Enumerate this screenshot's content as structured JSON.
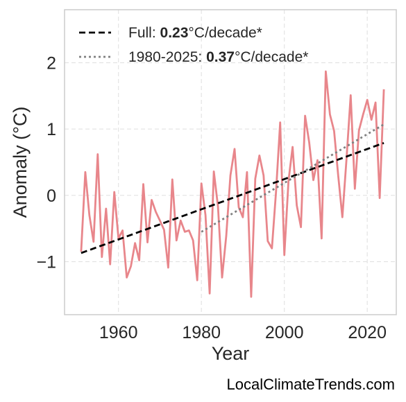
{
  "chart_data": {
    "type": "line",
    "xlabel": "Year",
    "ylabel": "Anomaly (°C)",
    "xlim": [
      1947,
      2027
    ],
    "ylim": [
      -1.8,
      2.8
    ],
    "xticks": [
      1960,
      1980,
      2000,
      2020
    ],
    "yticks": [
      -1,
      0,
      1,
      2
    ],
    "ytick_labels": [
      "−1",
      "0",
      "1",
      "2"
    ],
    "grid": true,
    "legend_position": "top-left",
    "series": [
      {
        "kind": "anomaly",
        "color": "#e8868b",
        "x": [
          1951,
          1952,
          1953,
          1954,
          1955,
          1956,
          1957,
          1958,
          1959,
          1960,
          1961,
          1962,
          1963,
          1964,
          1965,
          1966,
          1967,
          1968,
          1969,
          1970,
          1971,
          1972,
          1973,
          1974,
          1975,
          1976,
          1977,
          1978,
          1979,
          1980,
          1981,
          1982,
          1983,
          1984,
          1985,
          1986,
          1987,
          1988,
          1989,
          1990,
          1991,
          1992,
          1993,
          1994,
          1995,
          1996,
          1997,
          1998,
          1999,
          2000,
          2001,
          2002,
          2003,
          2004,
          2005,
          2006,
          2007,
          2008,
          2009,
          2010,
          2011,
          2012,
          2013,
          2014,
          2015,
          2016,
          2017,
          2018,
          2019,
          2020,
          2021,
          2022,
          2023,
          2024
        ],
        "y": [
          -0.85,
          0.35,
          -0.3,
          -0.7,
          0.62,
          -0.93,
          -0.2,
          -1.04,
          0.05,
          -0.65,
          -0.53,
          -1.24,
          -1.07,
          -0.72,
          -0.98,
          0.17,
          -0.71,
          -0.07,
          -0.25,
          -0.38,
          -0.52,
          -1.09,
          0.24,
          -0.68,
          -0.38,
          -0.55,
          -0.53,
          -0.68,
          -1.28,
          0.18,
          -0.3,
          -1.48,
          0.36,
          -0.17,
          -1.24,
          -0.61,
          0.3,
          0.7,
          -0.18,
          -0.33,
          0.35,
          -1.53,
          0.25,
          0.6,
          0.3,
          -0.69,
          -0.8,
          0.05,
          1.1,
          -0.9,
          0.22,
          0.73,
          -0.15,
          -0.48,
          1.2,
          0.8,
          0.23,
          0.53,
          -0.65,
          1.87,
          1.22,
          0.97,
          0.3,
          -0.33,
          0.55,
          1.51,
          0.1,
          0.98,
          1.22,
          1.44,
          1.14,
          1.4,
          -0.04,
          1.6
        ]
      }
    ],
    "trendlines": [
      {
        "kind": "full",
        "label": "Full: ",
        "value": "0.23",
        "unit": "°C/decade*",
        "color": "#000000",
        "style": "dashed",
        "x": [
          1951,
          2024
        ],
        "y": [
          -0.87,
          0.79
        ]
      },
      {
        "kind": "recent",
        "label": "1980-2025: ",
        "value": "0.37",
        "unit": "°C/decade*",
        "color": "#808080",
        "style": "dotted",
        "x": [
          1980,
          2024
        ],
        "y": [
          -0.55,
          1.07
        ]
      }
    ],
    "source": "LocalClimateTrends.com"
  }
}
